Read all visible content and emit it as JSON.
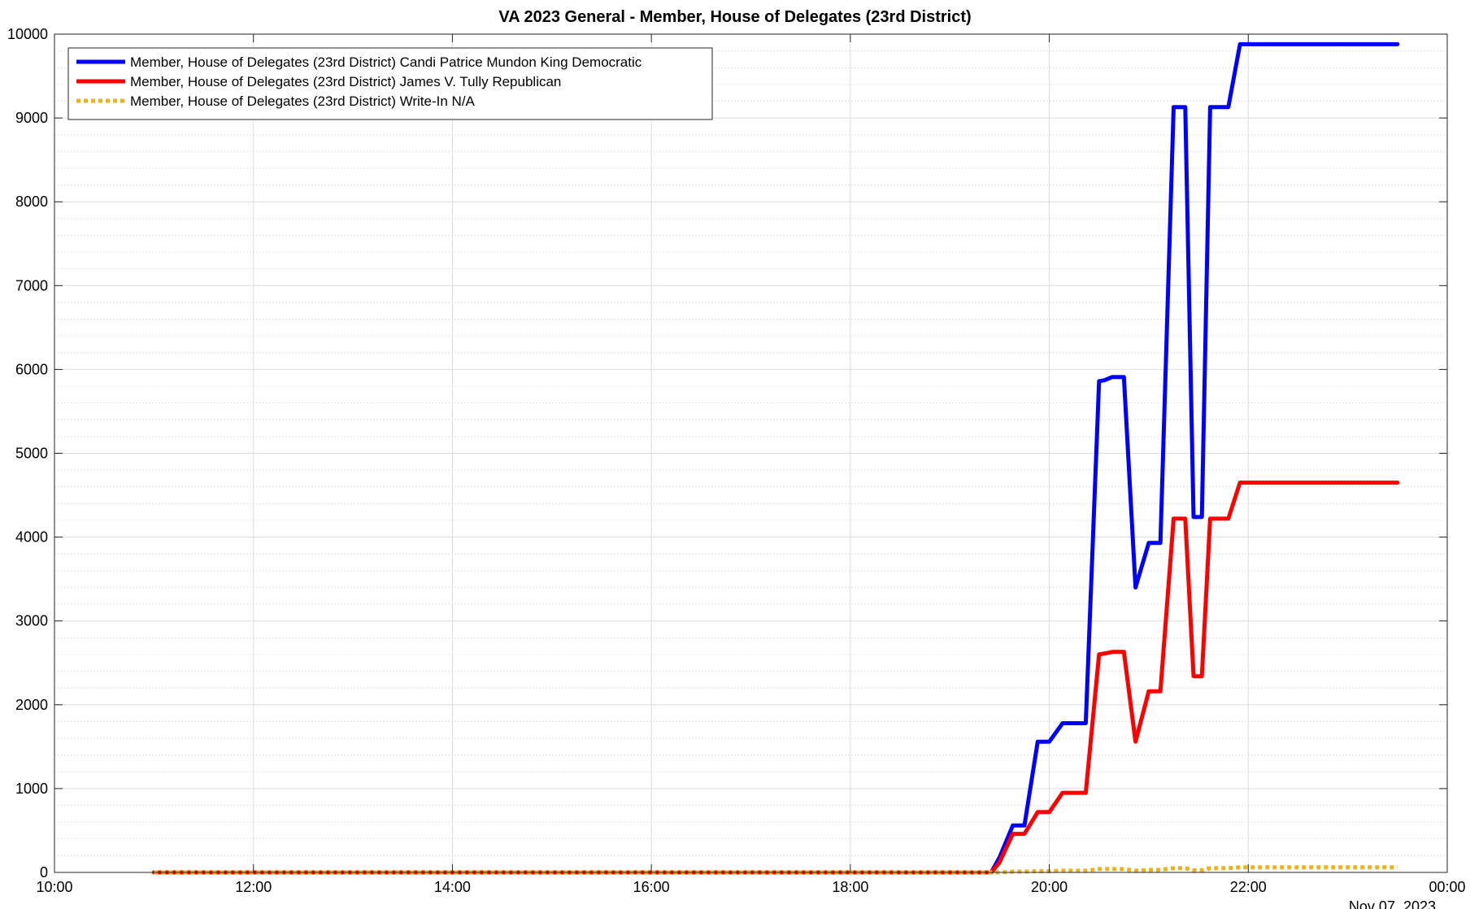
{
  "chart_data": {
    "type": "line",
    "title": "VA 2023 General - Member, House of Delegates (23rd District)",
    "xlabel": "",
    "ylabel": "",
    "x_range": [
      "2023-11-07 10:00",
      "2023-11-08 00:00"
    ],
    "x_ticks": [
      "10:00",
      "12:00",
      "14:00",
      "16:00",
      "18:00",
      "20:00",
      "22:00",
      "00:00"
    ],
    "x_date_label": "Nov 07, 2023",
    "ylim": [
      0,
      10000
    ],
    "y_ticks": [
      "0",
      "1000",
      "2000",
      "3000",
      "4000",
      "5000",
      "6000",
      "7000",
      "8000",
      "9000",
      "10000"
    ],
    "grid": true,
    "minor_grid": true,
    "legend_position": "top-left",
    "series": [
      {
        "name": "Member, House of Delegates (23rd District) Candi Patrice Mundon King Democratic",
        "color": "#0000ff",
        "style": "solid",
        "x": [
          "11:00",
          "19:25",
          "19:30",
          "19:38",
          "19:45",
          "19:53",
          "20:00",
          "20:08",
          "20:15",
          "20:22",
          "20:30",
          "20:33",
          "20:38",
          "20:45",
          "20:52",
          "21:00",
          "21:07",
          "21:15",
          "21:22",
          "21:27",
          "21:32",
          "21:37",
          "21:43",
          "21:48",
          "21:55",
          "22:00",
          "22:05",
          "22:15",
          "23:30"
        ],
        "y": [
          0,
          0,
          180,
          560,
          560,
          1560,
          1560,
          1780,
          1780,
          1780,
          5860,
          5870,
          5910,
          5910,
          3400,
          3930,
          3930,
          9130,
          9130,
          4240,
          4240,
          9130,
          9130,
          9130,
          9880,
          9880,
          9880,
          9880,
          9880
        ]
      },
      {
        "name": "Member, House of Delegates (23rd District) James V. Tully Republican",
        "color": "#ff0000",
        "style": "solid",
        "x": [
          "11:00",
          "19:25",
          "19:30",
          "19:38",
          "19:45",
          "19:53",
          "20:00",
          "20:08",
          "20:15",
          "20:22",
          "20:30",
          "20:33",
          "20:38",
          "20:45",
          "20:52",
          "21:00",
          "21:07",
          "21:15",
          "21:22",
          "21:27",
          "21:32",
          "21:37",
          "21:43",
          "21:48",
          "21:55",
          "22:00",
          "22:05",
          "22:15",
          "23:30"
        ],
        "y": [
          0,
          0,
          120,
          460,
          460,
          720,
          720,
          950,
          950,
          950,
          2600,
          2610,
          2630,
          2630,
          1560,
          2160,
          2160,
          4220,
          4220,
          2340,
          2340,
          4220,
          4220,
          4220,
          4650,
          4650,
          4650,
          4650,
          4650
        ]
      },
      {
        "name": "Member, House of Delegates (23rd District) Write-In N/A",
        "color": "#edb120",
        "style": "dotted",
        "x": [
          "11:00",
          "19:25",
          "19:30",
          "19:38",
          "19:45",
          "19:53",
          "20:00",
          "20:08",
          "20:15",
          "20:22",
          "20:30",
          "20:33",
          "20:38",
          "20:45",
          "20:52",
          "21:00",
          "21:07",
          "21:15",
          "21:22",
          "21:27",
          "21:32",
          "21:37",
          "21:43",
          "21:48",
          "21:55",
          "22:00",
          "22:05",
          "22:15",
          "23:30"
        ],
        "y": [
          0,
          0,
          0,
          10,
          10,
          15,
          15,
          20,
          20,
          20,
          40,
          40,
          40,
          40,
          20,
          30,
          30,
          50,
          50,
          25,
          25,
          50,
          50,
          50,
          60,
          60,
          60,
          60,
          60
        ]
      }
    ]
  }
}
